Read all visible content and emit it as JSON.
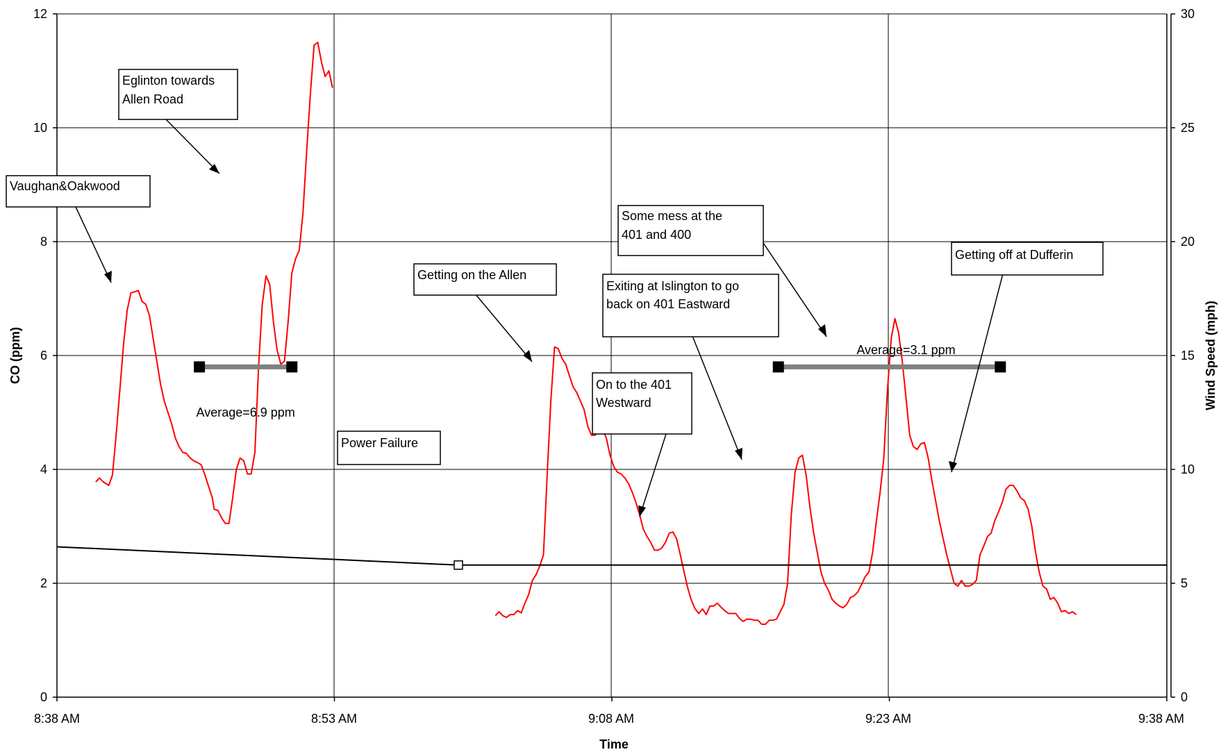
{
  "chart_data": {
    "type": "line",
    "title": "",
    "xlabel": "Time",
    "ylabel": "CO (ppm)",
    "y2label": "Wind Speed (mph)",
    "xlim_minutes": [
      0,
      60
    ],
    "ylim": [
      0,
      12
    ],
    "y2lim": [
      0,
      30
    ],
    "grid": true,
    "x_ticks": [
      "8:38 AM",
      "8:53 AM",
      "9:08 AM",
      "9:23 AM",
      "9:38 AM"
    ],
    "y_ticks": [
      "0",
      "2",
      "4",
      "6",
      "8",
      "10",
      "12"
    ],
    "y2_ticks": [
      "0",
      "5",
      "10",
      "15",
      "20",
      "25",
      "30"
    ],
    "series": [
      {
        "axis": "left",
        "color": "#ff0000",
        "segments": [
          [
            [
              2.1,
              3.78
            ],
            [
              2.3,
              3.85
            ],
            [
              2.5,
              3.78
            ],
            [
              2.8,
              3.72
            ],
            [
              3.0,
              3.9
            ],
            [
              3.2,
              4.6
            ],
            [
              3.4,
              5.4
            ],
            [
              3.6,
              6.2
            ],
            [
              3.8,
              6.8
            ],
            [
              4.0,
              7.1
            ],
            [
              4.2,
              7.12
            ],
            [
              4.4,
              7.14
            ],
            [
              4.6,
              6.95
            ],
            [
              4.8,
              6.9
            ],
            [
              5.0,
              6.7
            ],
            [
              5.2,
              6.3
            ],
            [
              5.4,
              5.9
            ],
            [
              5.6,
              5.5
            ],
            [
              5.8,
              5.2
            ],
            [
              6.0,
              5.0
            ],
            [
              6.2,
              4.8
            ],
            [
              6.4,
              4.55
            ],
            [
              6.6,
              4.4
            ],
            [
              6.8,
              4.3
            ],
            [
              7.0,
              4.28
            ],
            [
              7.2,
              4.2
            ],
            [
              7.4,
              4.15
            ],
            [
              7.6,
              4.12
            ],
            [
              7.8,
              4.08
            ],
            [
              8.0,
              3.9
            ],
            [
              8.2,
              3.7
            ],
            [
              8.4,
              3.5
            ],
            [
              8.5,
              3.3
            ],
            [
              8.7,
              3.28
            ],
            [
              8.9,
              3.15
            ],
            [
              9.1,
              3.05
            ],
            [
              9.3,
              3.05
            ],
            [
              9.5,
              3.5
            ],
            [
              9.7,
              4.0
            ],
            [
              9.9,
              4.2
            ],
            [
              10.1,
              4.15
            ],
            [
              10.3,
              3.92
            ],
            [
              10.5,
              3.92
            ],
            [
              10.7,
              4.3
            ],
            [
              10.9,
              5.8
            ],
            [
              11.1,
              6.9
            ],
            [
              11.3,
              7.4
            ],
            [
              11.5,
              7.25
            ],
            [
              11.7,
              6.6
            ],
            [
              11.9,
              6.1
            ],
            [
              12.1,
              5.85
            ],
            [
              12.3,
              5.9
            ],
            [
              12.5,
              6.6
            ],
            [
              12.7,
              7.45
            ],
            [
              12.9,
              7.7
            ],
            [
              13.1,
              7.85
            ],
            [
              13.3,
              8.5
            ],
            [
              13.5,
              9.6
            ],
            [
              13.7,
              10.6
            ],
            [
              13.9,
              11.45
            ],
            [
              14.1,
              11.5
            ],
            [
              14.3,
              11.15
            ],
            [
              14.5,
              10.9
            ],
            [
              14.7,
              11.0
            ],
            [
              14.9,
              10.7
            ]
          ],
          [
            [
              23.7,
              1.43
            ],
            [
              23.9,
              1.5
            ],
            [
              24.1,
              1.43
            ],
            [
              24.3,
              1.4
            ],
            [
              24.5,
              1.45
            ],
            [
              24.7,
              1.45
            ],
            [
              24.9,
              1.52
            ],
            [
              25.1,
              1.48
            ],
            [
              25.3,
              1.65
            ],
            [
              25.5,
              1.8
            ],
            [
              25.7,
              2.05
            ],
            [
              25.9,
              2.15
            ],
            [
              26.1,
              2.3
            ],
            [
              26.3,
              2.5
            ],
            [
              26.5,
              3.9
            ],
            [
              26.7,
              5.2
            ],
            [
              26.9,
              6.15
            ],
            [
              27.1,
              6.12
            ],
            [
              27.3,
              5.95
            ],
            [
              27.5,
              5.85
            ],
            [
              27.7,
              5.65
            ],
            [
              27.9,
              5.45
            ],
            [
              28.1,
              5.35
            ],
            [
              28.3,
              5.2
            ],
            [
              28.5,
              5.05
            ],
            [
              28.7,
              4.75
            ],
            [
              28.9,
              4.6
            ],
            [
              29.1,
              4.6
            ],
            [
              29.3,
              4.68
            ],
            [
              29.5,
              4.7
            ],
            [
              29.7,
              4.55
            ],
            [
              29.9,
              4.25
            ],
            [
              30.1,
              4.05
            ],
            [
              30.3,
              3.95
            ],
            [
              30.5,
              3.92
            ],
            [
              30.7,
              3.85
            ],
            [
              30.9,
              3.75
            ],
            [
              31.1,
              3.6
            ],
            [
              31.3,
              3.42
            ],
            [
              31.5,
              3.2
            ],
            [
              31.7,
              2.95
            ],
            [
              31.9,
              2.82
            ],
            [
              32.1,
              2.72
            ],
            [
              32.3,
              2.58
            ],
            [
              32.5,
              2.58
            ],
            [
              32.7,
              2.62
            ],
            [
              32.9,
              2.72
            ],
            [
              33.1,
              2.88
            ],
            [
              33.3,
              2.9
            ],
            [
              33.5,
              2.78
            ],
            [
              33.7,
              2.5
            ],
            [
              33.9,
              2.2
            ],
            [
              34.1,
              1.92
            ],
            [
              34.3,
              1.7
            ],
            [
              34.5,
              1.55
            ],
            [
              34.7,
              1.47
            ],
            [
              34.9,
              1.55
            ],
            [
              35.1,
              1.45
            ],
            [
              35.3,
              1.6
            ],
            [
              35.5,
              1.6
            ],
            [
              35.7,
              1.65
            ],
            [
              35.9,
              1.58
            ],
            [
              36.1,
              1.52
            ],
            [
              36.3,
              1.47
            ],
            [
              36.5,
              1.47
            ],
            [
              36.7,
              1.47
            ],
            [
              36.9,
              1.38
            ],
            [
              37.1,
              1.33
            ],
            [
              37.3,
              1.37
            ],
            [
              37.5,
              1.37
            ],
            [
              37.7,
              1.35
            ],
            [
              37.9,
              1.35
            ],
            [
              38.1,
              1.28
            ],
            [
              38.3,
              1.28
            ],
            [
              38.5,
              1.35
            ],
            [
              38.7,
              1.35
            ],
            [
              38.9,
              1.37
            ],
            [
              39.1,
              1.5
            ],
            [
              39.3,
              1.63
            ],
            [
              39.5,
              2.0
            ],
            [
              39.7,
              3.2
            ],
            [
              39.9,
              3.95
            ],
            [
              40.1,
              4.2
            ],
            [
              40.3,
              4.25
            ],
            [
              40.5,
              3.9
            ],
            [
              40.7,
              3.35
            ],
            [
              40.9,
              2.9
            ],
            [
              41.1,
              2.55
            ],
            [
              41.3,
              2.2
            ],
            [
              41.5,
              2.0
            ],
            [
              41.7,
              1.88
            ],
            [
              41.9,
              1.72
            ],
            [
              42.1,
              1.65
            ],
            [
              42.3,
              1.6
            ],
            [
              42.5,
              1.57
            ],
            [
              42.7,
              1.63
            ],
            [
              42.9,
              1.75
            ],
            [
              43.1,
              1.78
            ],
            [
              43.3,
              1.85
            ],
            [
              43.5,
              1.98
            ],
            [
              43.7,
              2.12
            ],
            [
              43.9,
              2.2
            ],
            [
              44.1,
              2.55
            ],
            [
              44.3,
              3.1
            ],
            [
              44.5,
              3.6
            ],
            [
              44.7,
              4.2
            ],
            [
              44.9,
              5.4
            ],
            [
              45.1,
              6.3
            ],
            [
              45.3,
              6.65
            ],
            [
              45.5,
              6.4
            ],
            [
              45.7,
              5.9
            ],
            [
              45.9,
              5.25
            ],
            [
              46.1,
              4.6
            ],
            [
              46.3,
              4.4
            ],
            [
              46.5,
              4.35
            ],
            [
              46.7,
              4.45
            ],
            [
              46.9,
              4.47
            ],
            [
              47.1,
              4.2
            ],
            [
              47.3,
              3.8
            ],
            [
              47.5,
              3.45
            ],
            [
              47.7,
              3.1
            ],
            [
              47.9,
              2.8
            ],
            [
              48.1,
              2.5
            ],
            [
              48.3,
              2.25
            ],
            [
              48.5,
              2.0
            ],
            [
              48.7,
              1.95
            ],
            [
              48.9,
              2.05
            ],
            [
              49.1,
              1.95
            ],
            [
              49.3,
              1.95
            ],
            [
              49.5,
              1.98
            ],
            [
              49.7,
              2.05
            ],
            [
              49.9,
              2.5
            ],
            [
              50.1,
              2.65
            ],
            [
              50.3,
              2.82
            ],
            [
              50.5,
              2.88
            ],
            [
              50.7,
              3.1
            ],
            [
              50.9,
              3.25
            ],
            [
              51.1,
              3.42
            ],
            [
              51.3,
              3.65
            ],
            [
              51.5,
              3.72
            ],
            [
              51.7,
              3.72
            ],
            [
              51.9,
              3.62
            ],
            [
              52.1,
              3.5
            ],
            [
              52.3,
              3.45
            ],
            [
              52.5,
              3.3
            ],
            [
              52.7,
              3.0
            ],
            [
              52.9,
              2.55
            ],
            [
              53.1,
              2.2
            ],
            [
              53.3,
              1.95
            ],
            [
              53.5,
              1.9
            ],
            [
              53.7,
              1.72
            ],
            [
              53.9,
              1.75
            ],
            [
              54.1,
              1.65
            ],
            [
              54.3,
              1.5
            ],
            [
              54.5,
              1.52
            ],
            [
              54.7,
              1.47
            ],
            [
              54.9,
              1.5
            ],
            [
              55.1,
              1.45
            ]
          ]
        ]
      },
      {
        "axis": "right",
        "color": "#000000",
        "points": [
          [
            0,
            6.6
          ],
          [
            21.7,
            5.8
          ],
          [
            60,
            5.8
          ]
        ]
      }
    ],
    "averages": [
      {
        "label": "Average=6.9 ppm",
        "value": 5.8,
        "x_start": 7.7,
        "x_end": 12.7,
        "label_x": 10.2,
        "label_y": 5.0
      },
      {
        "label": "Average=3.1 ppm",
        "value": 5.8,
        "x_start": 39.0,
        "x_end": 51.0,
        "label_x": 45.9,
        "label_y": 6.1
      }
    ],
    "annotations": [
      {
        "lines": [
          "Eglinton towards",
          "Allen Road"
        ]
      },
      {
        "lines": [
          "Vaughan&Oakwood"
        ]
      },
      {
        "lines": [
          "Some mess at the",
          "401 and 400"
        ]
      },
      {
        "lines": [
          "Getting on the Allen"
        ]
      },
      {
        "lines": [
          "Exiting at Islington to go",
          "back on 401 Eastward"
        ]
      },
      {
        "lines": [
          "Getting off at Dufferin"
        ]
      },
      {
        "lines": [
          "On to the 401",
          "Westward"
        ]
      },
      {
        "lines": [
          "Power Failure"
        ]
      }
    ]
  }
}
